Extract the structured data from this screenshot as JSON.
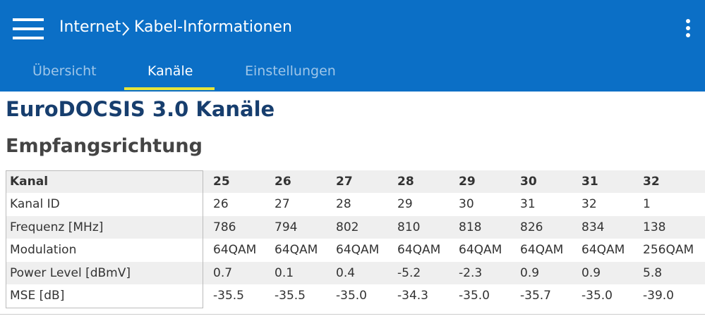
{
  "header": {
    "breadcrumb": [
      "Internet",
      "Kabel-Informationen"
    ]
  },
  "tabs": [
    "Übersicht",
    "Kanäle",
    "Einstellungen"
  ],
  "active_tab": 1,
  "title": "EuroDOCSIS 3.0 Kanäle",
  "subtitle": "Empfangsrichtung",
  "table": {
    "header": [
      "Kanal",
      "25",
      "26",
      "27",
      "28",
      "29",
      "30",
      "31",
      "32"
    ],
    "rows": [
      [
        "Kanal ID",
        "26",
        "27",
        "28",
        "29",
        "30",
        "31",
        "32",
        "1"
      ],
      [
        "Frequenz [MHz]",
        "786",
        "794",
        "802",
        "810",
        "818",
        "826",
        "834",
        "138"
      ],
      [
        "Modulation",
        "64QAM",
        "64QAM",
        "64QAM",
        "64QAM",
        "64QAM",
        "64QAM",
        "64QAM",
        "256QAM"
      ],
      [
        "Power Level [dBmV]",
        "0.7",
        "0.1",
        "0.4",
        "-5.2",
        "-2.3",
        "0.9",
        "0.9",
        "5.8"
      ],
      [
        "MSE [dB]",
        "-35.5",
        "-35.5",
        "-35.0",
        "-34.3",
        "-35.0",
        "-35.7",
        "-35.0",
        "-39.0"
      ]
    ]
  }
}
